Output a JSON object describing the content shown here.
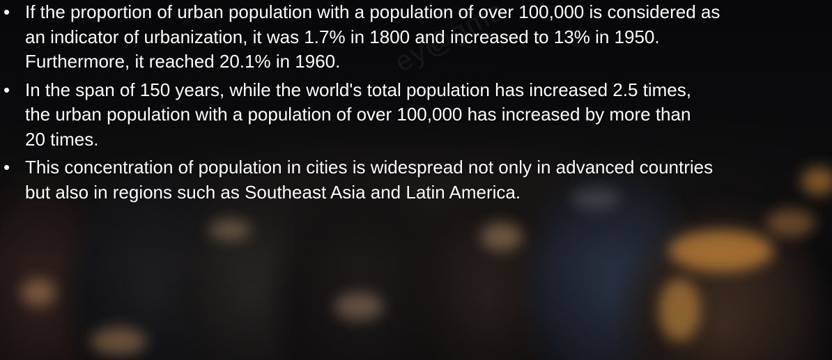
{
  "slide": {
    "bullets": [
      {
        "lines": [
          "If the proportion of urban population with a population of over 100,000 is considered as",
          "an indicator of urbanization, it was 1.7% in 1800 and increased to 13% in 1950.",
          "Furthermore, it reached 20.1% in 1960."
        ]
      },
      {
        "lines": [
          "In the span of 150 years, while the world's total population has increased 2.5 times,",
          "the urban population with a population of over 100,000 has increased by more than",
          "20 times."
        ]
      },
      {
        "lines": [
          "This concentration of population in cities is widespread not only in advanced countries",
          "but also in regions such as Southeast Asia and Latin America."
        ]
      }
    ],
    "bullet_glyph": "•",
    "watermark": "ey@gma",
    "background_image": "crowd-photo",
    "colors": {
      "text": "#ffffff",
      "background": "#0a0a0c",
      "rim_light": "#ffb347"
    }
  }
}
